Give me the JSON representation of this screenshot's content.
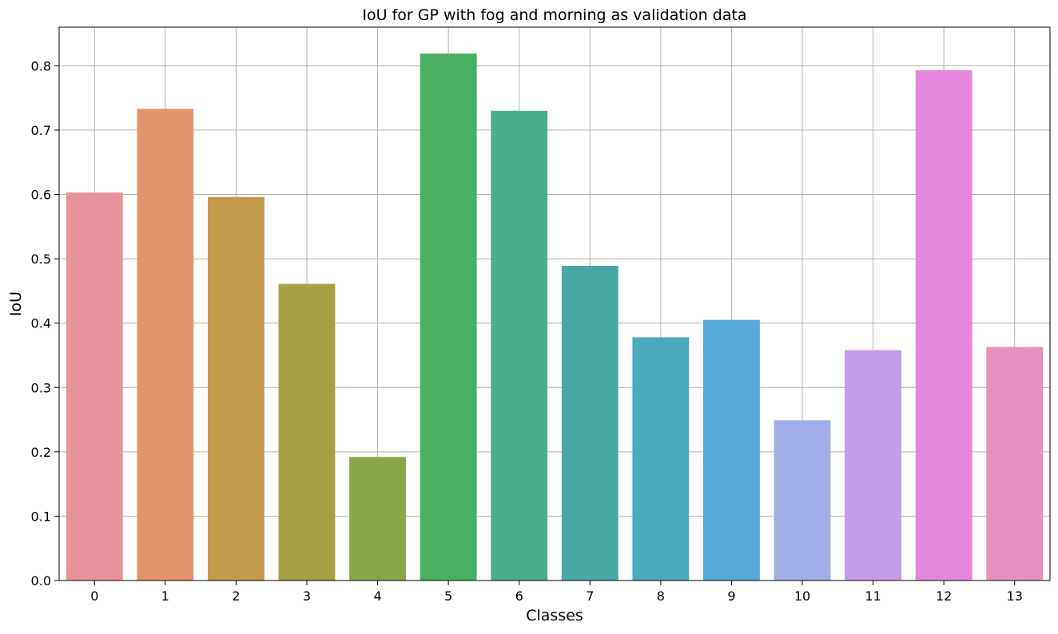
{
  "chart_data": {
    "type": "bar",
    "title": "IoU for GP with fog and morning as validation data",
    "xlabel": "Classes",
    "ylabel": "IoU",
    "categories": [
      "0",
      "1",
      "2",
      "3",
      "4",
      "5",
      "6",
      "7",
      "8",
      "9",
      "10",
      "11",
      "12",
      "13"
    ],
    "values": [
      0.603,
      0.733,
      0.596,
      0.461,
      0.192,
      0.819,
      0.73,
      0.489,
      0.378,
      0.405,
      0.249,
      0.358,
      0.793,
      0.363
    ],
    "colors": [
      "#e8929c",
      "#e3946a",
      "#c29c4c",
      "#a6a044",
      "#89a748",
      "#4aaf63",
      "#4aae8e",
      "#4aa8a6",
      "#4caabd",
      "#57a9d7",
      "#a1aee8",
      "#c49ce5",
      "#e687dd",
      "#e88fbf"
    ],
    "ylim": [
      0,
      0.86
    ],
    "yticks": [
      "0.0",
      "0.1",
      "0.2",
      "0.3",
      "0.4",
      "0.5",
      "0.6",
      "0.7",
      "0.8"
    ],
    "grid": true
  }
}
